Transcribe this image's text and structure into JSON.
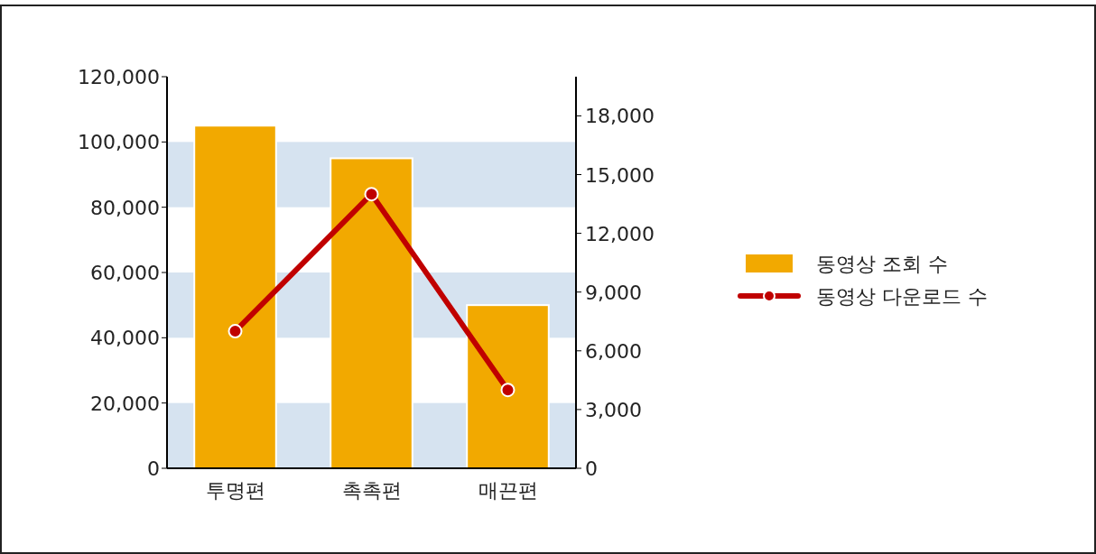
{
  "chart_data": {
    "type": "bar",
    "categories": [
      "투명편",
      "촉촉편",
      "매끈편"
    ],
    "series": [
      {
        "name": "동영상 조회 수",
        "color": "#f2a900",
        "values": [
          105000,
          95000,
          50000
        ]
      },
      {
        "name": "동영상 다운로드 수",
        "type": "line",
        "axis": "y2",
        "color": "#c00000",
        "marker": "circle",
        "values": [
          7000,
          14000,
          4000
        ]
      }
    ],
    "ylim": [
      0,
      120000
    ],
    "yticks": [
      0,
      {
        "value": 20000,
        "label": "20,000"
      },
      {
        "value": 40000,
        "label": "40,000"
      },
      {
        "value": 60000,
        "label": "60,000"
      },
      {
        "value": 80000,
        "label": "80,000"
      },
      {
        "value": 100000,
        "label": "100,000"
      },
      {
        "value": 120000,
        "label": "120,000"
      }
    ],
    "y2lim": [
      0,
      20000
    ],
    "y2ticks": [
      0,
      {
        "value": 3000,
        "label": "3,000"
      },
      {
        "value": 6000,
        "label": "6,000"
      },
      {
        "value": 9000,
        "label": "9,000"
      },
      {
        "value": 12000,
        "label": "12,000"
      },
      {
        "value": 15000,
        "label": "15,000"
      },
      {
        "value": 18000,
        "label": "18,000"
      }
    ],
    "bands": [
      {
        "axis": "y",
        "from": 0,
        "to": 20000,
        "color": "#d6e3f0"
      },
      {
        "axis": "y",
        "from": 40000,
        "to": 60000,
        "color": "#d6e3f0"
      },
      {
        "axis": "y",
        "from": 80000,
        "to": 100000,
        "color": "#d6e3f0"
      }
    ],
    "grid": false,
    "legend": "right"
  }
}
